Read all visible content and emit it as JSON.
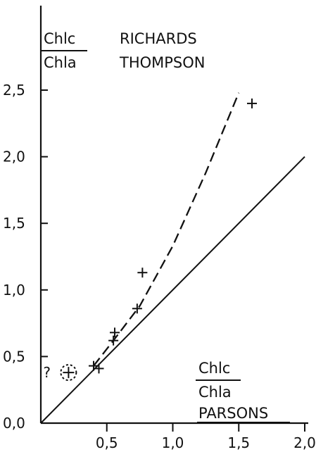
{
  "chart_data": {
    "type": "scatter",
    "xlim": [
      0,
      2.0
    ],
    "ylim": [
      0,
      2.5
    ],
    "x_ticks": [
      {
        "value": 0.5,
        "label": "0,5"
      },
      {
        "value": 1.0,
        "label": "1,0"
      },
      {
        "value": 1.5,
        "label": "1,5"
      },
      {
        "value": 2.0,
        "label": "2,0"
      }
    ],
    "y_ticks": [
      {
        "value": 0.0,
        "label": "0,0"
      },
      {
        "value": 0.5,
        "label": "0,5"
      },
      {
        "value": 1.0,
        "label": "1,0"
      },
      {
        "value": 1.5,
        "label": "1,5"
      },
      {
        "value": 2.0,
        "label": "2,0"
      },
      {
        "value": 2.5,
        "label": "2,5"
      }
    ],
    "ylabel": {
      "numerator": "Chlc",
      "denominator": "Chla",
      "line1": "RICHARDS",
      "line2": "THOMPSON"
    },
    "xlabel": {
      "numerator": "Chlc",
      "denominator": "Chla",
      "line3": "PARSONS"
    },
    "points": [
      {
        "x": 0.4,
        "y": 0.43
      },
      {
        "x": 0.44,
        "y": 0.41
      },
      {
        "x": 0.55,
        "y": 0.62
      },
      {
        "x": 0.56,
        "y": 0.68
      },
      {
        "x": 0.73,
        "y": 0.86
      },
      {
        "x": 0.77,
        "y": 1.13
      },
      {
        "x": 1.6,
        "y": 2.4
      }
    ],
    "questionable_point": {
      "x": 0.21,
      "y": 0.38,
      "marker": "?"
    },
    "identity_line": {
      "style": "solid",
      "from": [
        0,
        0
      ],
      "to": [
        2.0,
        2.0
      ]
    },
    "fit_curve": {
      "style": "dashed",
      "points": [
        [
          0.4,
          0.43
        ],
        [
          0.55,
          0.62
        ],
        [
          0.75,
          0.88
        ],
        [
          1.0,
          1.33
        ],
        [
          1.25,
          1.88
        ],
        [
          1.5,
          2.48
        ]
      ]
    },
    "grid": false
  }
}
